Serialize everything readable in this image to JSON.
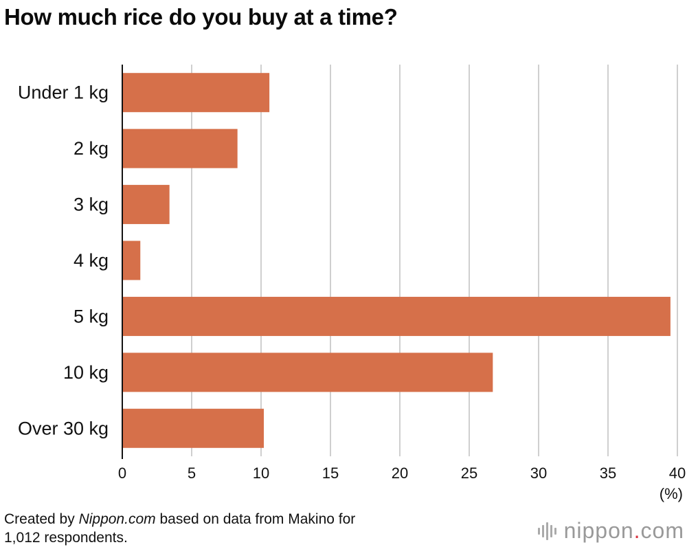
{
  "chart_data": {
    "type": "bar",
    "orientation": "horizontal",
    "title": "How much rice do you buy at a time?",
    "categories": [
      "Under 1 kg",
      "2 kg",
      "3 kg",
      "4 kg",
      "5 kg",
      "10 kg",
      "Over 30 kg"
    ],
    "values": [
      10.6,
      8.3,
      3.4,
      1.3,
      39.5,
      26.7,
      10.2
    ],
    "xlim": [
      0,
      40
    ],
    "xticks": [
      0,
      5,
      10,
      15,
      20,
      25,
      30,
      35,
      40
    ],
    "xlabel": "(%)",
    "ylabel": "",
    "grid": true,
    "bar_color": "#d6704a",
    "grid_color": "#cfcfcf"
  },
  "footer": {
    "prefix": "Created by ",
    "brand": "Nippon.com",
    "suffix": " based on data from Makino for",
    "line2": "1,012 respondents."
  },
  "logo": {
    "name": "nippon",
    "dot": ".",
    "tld": "com",
    "icon": "nippon-logo-bars-icon"
  }
}
